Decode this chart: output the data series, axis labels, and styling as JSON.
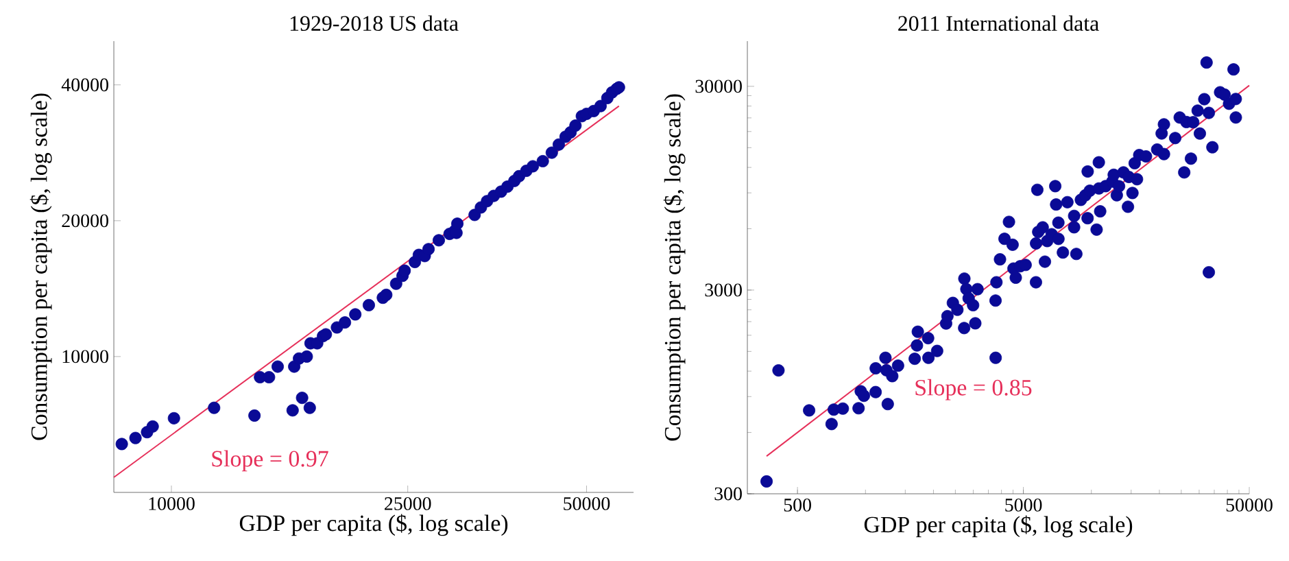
{
  "chart_data": [
    {
      "type": "scatter",
      "title": "1929-2018 US data",
      "xlabel": "GDP per capita ($, log scale)",
      "ylabel": "Consumption per capita ($, log scale)",
      "log": "xy",
      "xlim": [
        8000,
        60000
      ],
      "ylim": [
        5000,
        50000
      ],
      "xticks": [
        10000,
        25000,
        50000
      ],
      "yticks": [
        10000,
        20000,
        40000
      ],
      "series": [
        {
          "color": "#0a0a96",
          "marker": "circle",
          "x": [
            8250,
            8700,
            9100,
            9300,
            10100,
            11800,
            13800,
            14100,
            14600,
            15100,
            16000,
            16100,
            16400,
            16600,
            16900,
            17100,
            17150,
            17600,
            18000,
            18200,
            19000,
            19600,
            20400,
            21500,
            22700,
            23000,
            23900,
            24500,
            24700,
            25700,
            26100,
            26700,
            27100,
            28200,
            29400,
            30000,
            30200,
            30300,
            32400,
            33200,
            34000,
            34900,
            35900,
            36800,
            37800,
            38500,
            39600,
            40600,
            42200,
            43700,
            44900,
            46100,
            47000,
            47900,
            49100,
            50000,
            51400,
            52800,
            54200,
            55200,
            56200,
            56700
          ],
          "values": [
            6400,
            6600,
            6800,
            7000,
            7300,
            7700,
            7400,
            9000,
            9000,
            9500,
            7600,
            9500,
            9900,
            8100,
            10000,
            7700,
            10700,
            10700,
            11100,
            11200,
            11600,
            11900,
            12400,
            13000,
            13500,
            13700,
            14500,
            15100,
            15500,
            16200,
            16800,
            16700,
            17300,
            18100,
            18700,
            19000,
            18800,
            19700,
            20600,
            21400,
            22100,
            22700,
            23200,
            23800,
            24500,
            25100,
            25800,
            26400,
            27100,
            28300,
            29500,
            30700,
            31400,
            32500,
            34100,
            34500,
            35000,
            35900,
            37400,
            38500,
            39200,
            39500
          ]
        },
        {
          "type": "line",
          "color": "#e6305a",
          "marker": "none",
          "x": [
            8000,
            56700
          ],
          "values": [
            5400,
            35900
          ]
        }
      ],
      "annotations": [
        "Slope = 0.97"
      ]
    },
    {
      "type": "scatter",
      "title": "2011 International data",
      "xlabel": "GDP per capita ($, log scale)",
      "ylabel": "Consumption per capita ($, log scale)",
      "log": "xy",
      "xlim": [
        300,
        50000
      ],
      "ylim": [
        300,
        50000
      ],
      "xticks": [
        500,
        5000,
        50000
      ],
      "yticks": [
        300,
        3000,
        30000
      ],
      "series": [
        {
          "color": "#0a0a96",
          "marker": "circle",
          "x": [
            365,
            412,
            563,
            708,
            724,
            794,
            932,
            953,
            984,
            1109,
            1255,
            1110,
            1226,
            1238,
            1314,
            1394,
            1652,
            1690,
            1705,
            1894,
            1900,
            2076,
            2275,
            2306,
            2437,
            2552,
            2734,
            2740,
            2797,
            2862,
            2995,
            3063,
            3134,
            3766,
            3770,
            3800,
            3941,
            4126,
            4317,
            4480,
            4521,
            4627,
            4842,
            5116,
            5685,
            5690,
            5764,
            5817,
            6088,
            6229,
            6374,
            6672,
            6920,
            6983,
            7145,
            7150,
            7481,
            7833,
            8386,
            8580,
            8390,
            8985,
            9402,
            9620,
            9630,
            9842,
            10550,
            10790,
            10800,
            10940,
            11560,
            12380,
            12560,
            12960,
            13260,
            13870,
            14520,
            14650,
            15200,
            15550,
            15920,
            16290,
            17450,
            19560,
            20470,
            20950,
            20960,
            23500,
            24610,
            25770,
            26350,
            27590,
            28230,
            29550,
            30220,
            31620,
            32360,
            33110,
            33120,
            34340,
            37140,
            38860,
            40690,
            42600,
            43570,
            43600
          ],
          "values": [
            345,
            1210,
            770,
            660,
            777,
            786,
            789,
            956,
            908,
            947,
            827,
            1239,
            1395,
            1212,
            1134,
            1277,
            1380,
            1604,
            1873,
            1742,
            1395,
            1508,
            2056,
            2234,
            2595,
            2401,
            1953,
            3414,
            3031,
            2734,
            2528,
            2060,
            3030,
            2664,
            1395,
            3276,
            4245,
            5354,
            6484,
            5007,
            3826,
            3450,
            3927,
            3987,
            3276,
            5083,
            9316,
            5787,
            6096,
            4135,
            5220,
            5641,
            9709,
            7893,
            6426,
            5350,
            4585,
            8099,
            6100,
            4513,
            6937,
            8316,
            8755,
            6758,
            11460,
            9223,
            5941,
            12710,
            9461,
            7305,
            9710,
            10230,
            11040,
            8760,
            9700,
            11340,
            7692,
            10770,
            8986,
            12580,
            10500,
            13800,
            13590,
            14690,
            17610,
            19520,
            13950,
            16720,
            21090,
            11340,
            20040,
            13250,
            20000,
            22800,
            17600,
            25950,
            39270,
            3668,
            22220,
            15070,
            28050,
            27330,
            24640,
            36330,
            26000,
            21100
          ]
        },
        {
          "type": "line",
          "color": "#e6305a",
          "marker": "none",
          "x": [
            365,
            50000
          ],
          "values": [
            459,
            30300
          ]
        }
      ],
      "annotations": [
        "Slope = 0.85"
      ]
    }
  ]
}
